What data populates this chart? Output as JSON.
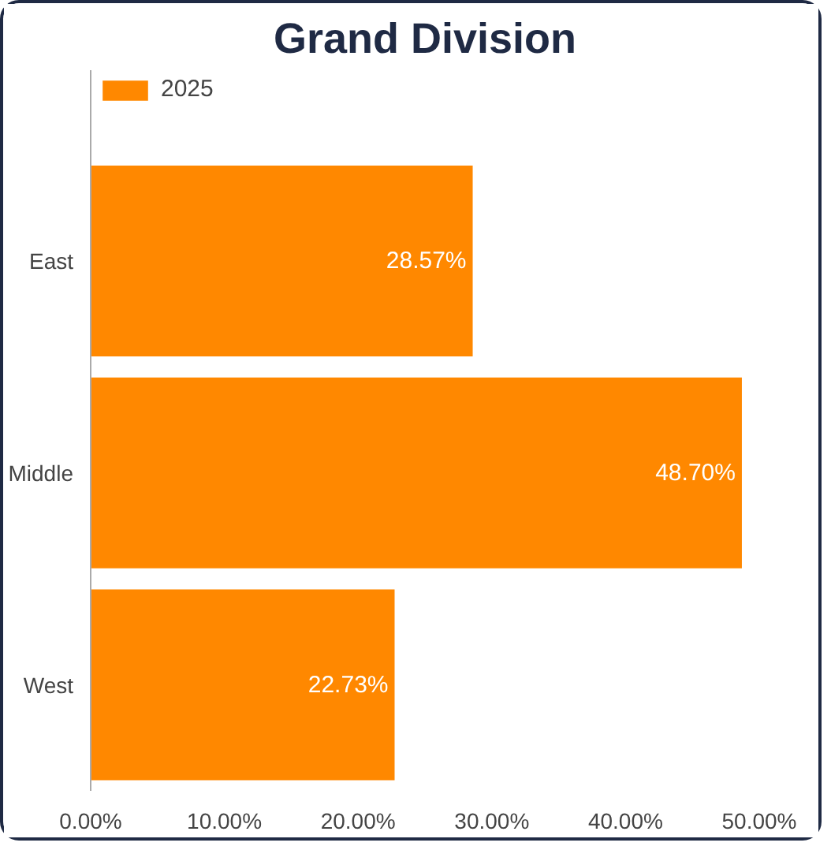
{
  "chart_data": {
    "type": "bar",
    "orientation": "horizontal",
    "title": "Grand Division",
    "categories": [
      "East",
      "Middle",
      "West"
    ],
    "series": [
      {
        "name": "2025",
        "color": "#ff8800",
        "values": [
          28.57,
          48.7,
          22.73
        ]
      }
    ],
    "value_labels": [
      "28.57%",
      "48.70%",
      "22.73%"
    ],
    "xlim": [
      0,
      50
    ],
    "xticks": [
      {
        "value": 0,
        "label": "0.00%"
      },
      {
        "value": 10,
        "label": "10.00%"
      },
      {
        "value": 20,
        "label": "20.00%"
      },
      {
        "value": 30,
        "label": "30.00%"
      },
      {
        "value": 40,
        "label": "40.00%"
      },
      {
        "value": 50,
        "label": "50.00%"
      }
    ],
    "grid": false,
    "legend": "top left"
  }
}
